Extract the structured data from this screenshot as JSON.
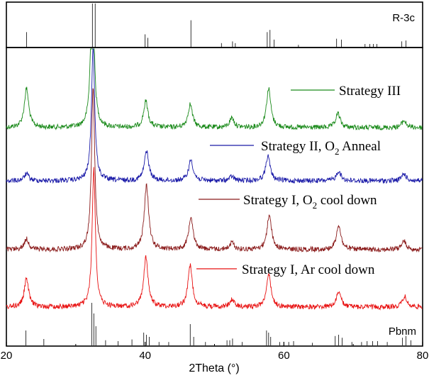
{
  "chart_data": {
    "type": "line",
    "title": "",
    "xlabel": "2Theta (°)",
    "ylabel": "",
    "xlim": [
      20,
      80
    ],
    "x_ticks": [
      "20",
      "40",
      "60",
      "80"
    ],
    "colors": {
      "strategy_3": "#1a8a1a",
      "strategy_2": "#1a1aa8",
      "strategy_1_o2": "#8a1a1a",
      "strategy_1_ar": "#e81010",
      "frame": "#000000",
      "reference": "#000000"
    },
    "reference_top": {
      "label": "R-3c",
      "positions": [
        22.9,
        32.4,
        32.8,
        40.0,
        40.4,
        46.6,
        51.0,
        52.6,
        53.0,
        57.6,
        58.0,
        58.6,
        62.1,
        67.6,
        68.3,
        71.7,
        72.4,
        72.9,
        73.4,
        77.0,
        77.6
      ],
      "heights": [
        0.35,
        1.0,
        1.0,
        0.3,
        0.22,
        0.62,
        0.1,
        0.14,
        0.1,
        0.35,
        0.4,
        0.18,
        0.06,
        0.2,
        0.18,
        0.08,
        0.08,
        0.08,
        0.08,
        0.14,
        0.16
      ]
    },
    "reference_bottom": {
      "label": "Pbnm",
      "positions": [
        22.8,
        25.4,
        32.3,
        32.6,
        32.9,
        34.3,
        36.1,
        38.1,
        39.8,
        40.2,
        40.6,
        42.0,
        43.4,
        46.5,
        47.0,
        48.7,
        51.8,
        52.2,
        52.6,
        54.0,
        57.5,
        57.8,
        58.1,
        59.4,
        60.7,
        61.4,
        64.1,
        67.4,
        67.9,
        68.4,
        69.8,
        71.2,
        72.0,
        72.8,
        73.5,
        74.9,
        77.1,
        77.6,
        78.3
      ],
      "heights": [
        0.35,
        0.15,
        1.0,
        0.75,
        0.45,
        0.12,
        0.1,
        0.14,
        0.3,
        0.25,
        0.2,
        0.08,
        0.08,
        0.5,
        0.2,
        0.08,
        0.12,
        0.12,
        0.16,
        0.08,
        0.35,
        0.3,
        0.2,
        0.08,
        0.08,
        0.1,
        0.06,
        0.22,
        0.25,
        0.18,
        0.08,
        0.08,
        0.1,
        0.1,
        0.1,
        0.08,
        0.18,
        0.22,
        0.12
      ]
    },
    "series": [
      {
        "name": "Strategy III",
        "legend_label": "Strategy III",
        "color_key": "strategy_3",
        "peaks": [
          [
            22.9,
            55
          ],
          [
            32.4,
            230
          ],
          [
            40.1,
            37
          ],
          [
            46.5,
            33
          ],
          [
            52.5,
            14
          ],
          [
            57.8,
            55
          ],
          [
            67.8,
            20
          ],
          [
            77.3,
            10
          ]
        ]
      },
      {
        "name": "Strategy II, O2 Anneal",
        "legend_label": "Strategy II, O",
        "legend_sub": "2",
        "legend_suffix": " Anneal",
        "color_key": "strategy_2",
        "peaks": [
          [
            22.9,
            10
          ],
          [
            32.5,
            190
          ],
          [
            40.2,
            42
          ],
          [
            46.6,
            30
          ],
          [
            52.5,
            6
          ],
          [
            57.7,
            35
          ],
          [
            67.9,
            14
          ],
          [
            77.3,
            10
          ]
        ]
      },
      {
        "name": "Strategy I, O2 cool down",
        "legend_label": "Strategy I, O",
        "legend_sub": "2",
        "legend_suffix": " cool down",
        "color_key": "strategy_1_o2",
        "peaks": [
          [
            22.9,
            15
          ],
          [
            32.5,
            230
          ],
          [
            40.2,
            90
          ],
          [
            46.6,
            47
          ],
          [
            52.5,
            10
          ],
          [
            57.9,
            50
          ],
          [
            67.9,
            35
          ],
          [
            77.3,
            12
          ]
        ]
      },
      {
        "name": "Strategy I, Ar cool down",
        "legend_label": "Strategy I, Ar cool down",
        "color_key": "strategy_1_ar",
        "peaks": [
          [
            22.9,
            40
          ],
          [
            32.6,
            195
          ],
          [
            40.1,
            70
          ],
          [
            46.5,
            58
          ],
          [
            52.5,
            10
          ],
          [
            57.8,
            47
          ],
          [
            67.9,
            22
          ],
          [
            77.4,
            15
          ]
        ]
      }
    ]
  }
}
